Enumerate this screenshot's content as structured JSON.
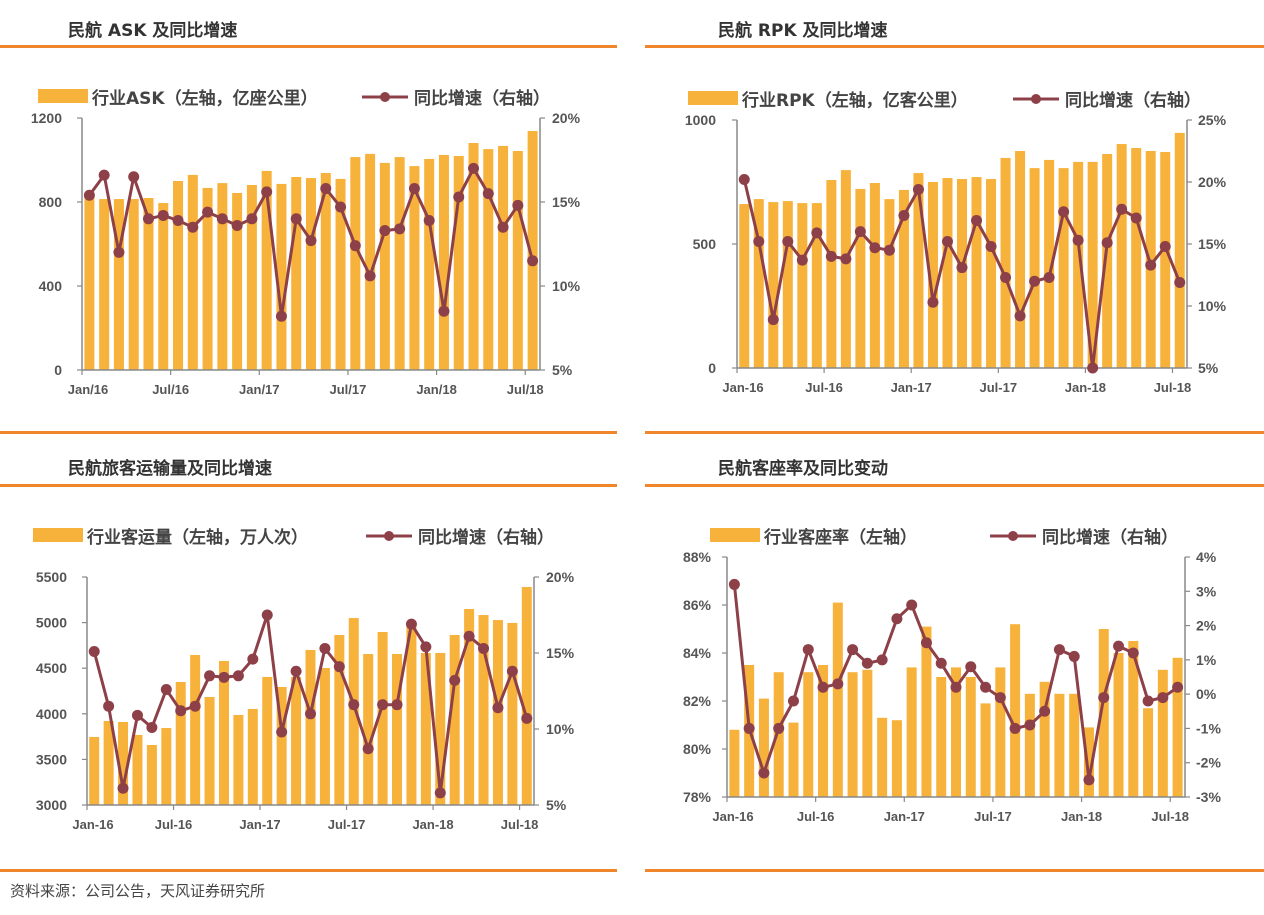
{
  "source": "资料来源：公司公告，天风证券研究所",
  "colors": {
    "bar": "#f7b23b",
    "line": "#8e4048",
    "rule": "#f0862c",
    "axis": "#888888"
  },
  "chart_data": [
    {
      "type": "bar+line",
      "title": "民航 ASK 及同比增速",
      "legend": {
        "bar": "行业ASK（左轴，亿座公里）",
        "line": "同比增速（右轴）",
        "position": "top"
      },
      "left_ticks": [
        "0",
        "400",
        "800",
        "1200"
      ],
      "right_ticks": [
        "5%",
        "10%",
        "15%",
        "20%"
      ],
      "ylim_left": [
        0,
        1200
      ],
      "ylim_right": [
        5,
        20
      ],
      "x_tick_labels": [
        "Jan/16",
        "Jul/16",
        "Jan/17",
        "Jul/17",
        "Jan/18",
        "Jul/18"
      ],
      "x": [
        "2016-01",
        "2016-02",
        "2016-03",
        "2016-04",
        "2016-05",
        "2016-06",
        "2016-07",
        "2016-08",
        "2016-09",
        "2016-10",
        "2016-11",
        "2016-12",
        "2017-01",
        "2017-02",
        "2017-03",
        "2017-04",
        "2017-05",
        "2017-06",
        "2017-07",
        "2017-08",
        "2017-09",
        "2017-10",
        "2017-11",
        "2017-12",
        "2018-01",
        "2018-02",
        "2018-03",
        "2018-04",
        "2018-05",
        "2018-06",
        "2018-07"
      ],
      "series": [
        {
          "name": "行业ASK",
          "axis": "left",
          "values": [
            824,
            814,
            814,
            814,
            819,
            795,
            900,
            929,
            867,
            890,
            843,
            881,
            948,
            886,
            919,
            914,
            938,
            910,
            1014,
            1029,
            986,
            1014,
            971,
            1005,
            1024,
            1019,
            1081,
            1052,
            1067,
            1043,
            1138
          ]
        },
        {
          "name": "同比增速",
          "axis": "right",
          "values": [
            15.4,
            16.6,
            12.0,
            16.5,
            14.0,
            14.2,
            13.9,
            13.5,
            14.4,
            14.0,
            13.6,
            14.0,
            15.6,
            8.2,
            14.0,
            12.7,
            15.8,
            14.7,
            12.4,
            10.6,
            13.3,
            13.4,
            15.8,
            13.9,
            8.5,
            15.3,
            17.0,
            15.5,
            13.5,
            14.8,
            11.5
          ]
        }
      ]
    },
    {
      "type": "bar+line",
      "title": "民航 RPK 及同比增速",
      "legend": {
        "bar": "行业RPK（左轴，亿客公里）",
        "line": "同比增速（右轴）",
        "position": "top"
      },
      "left_ticks": [
        "0",
        "500",
        "1000"
      ],
      "right_ticks": [
        "5%",
        "10%",
        "15%",
        "20%",
        "25%"
      ],
      "ylim_left": [
        0,
        1000
      ],
      "ylim_right": [
        5,
        25
      ],
      "x_tick_labels": [
        "Jan-16",
        "Jul-16",
        "Jan-17",
        "Jul-17",
        "Jan-18",
        "Jul-18"
      ],
      "x": [
        "2016-01",
        "2016-02",
        "2016-03",
        "2016-04",
        "2016-05",
        "2016-06",
        "2016-07",
        "2016-08",
        "2016-09",
        "2016-10",
        "2016-11",
        "2016-12",
        "2017-01",
        "2017-02",
        "2017-03",
        "2017-04",
        "2017-05",
        "2017-06",
        "2017-07",
        "2017-08",
        "2017-09",
        "2017-10",
        "2017-11",
        "2017-12",
        "2018-01",
        "2018-02",
        "2018-03",
        "2018-04",
        "2018-05",
        "2018-06",
        "2018-07"
      ],
      "series": [
        {
          "name": "行业RPK",
          "axis": "left",
          "values": [
            661,
            681,
            669,
            673,
            665,
            665,
            758,
            798,
            722,
            746,
            681,
            718,
            786,
            750,
            766,
            762,
            770,
            762,
            847,
            875,
            806,
            839,
            806,
            831,
            831,
            863,
            903,
            887,
            875,
            871,
            948
          ]
        },
        {
          "name": "同比增速",
          "axis": "right",
          "values": [
            20.2,
            15.2,
            8.9,
            15.2,
            13.7,
            15.9,
            14.0,
            13.8,
            16.0,
            14.7,
            14.5,
            17.3,
            19.4,
            10.3,
            15.2,
            13.1,
            16.9,
            14.8,
            12.3,
            9.2,
            12.0,
            12.3,
            17.6,
            15.3,
            5.0,
            15.1,
            17.8,
            17.1,
            13.3,
            14.8,
            11.9
          ]
        }
      ]
    },
    {
      "type": "bar+line",
      "title": "民航旅客运输量及同比增速",
      "legend": {
        "bar": "行业客运量（左轴，万人次）",
        "line": "同比增速（右轴）",
        "position": "top"
      },
      "left_ticks": [
        "3000",
        "3500",
        "4000",
        "4500",
        "5000",
        "5500"
      ],
      "right_ticks": [
        "5%",
        "10%",
        "15%",
        "20%"
      ],
      "ylim_left": [
        3000,
        5500
      ],
      "ylim_right": [
        5,
        20
      ],
      "x_tick_labels": [
        "Jan-16",
        "Jul-16",
        "Jan-17",
        "Jul-17",
        "Jan-18",
        "Jul-18"
      ],
      "x": [
        "2016-01",
        "2016-02",
        "2016-03",
        "2016-04",
        "2016-05",
        "2016-06",
        "2016-07",
        "2016-08",
        "2016-09",
        "2016-10",
        "2016-11",
        "2016-12",
        "2017-01",
        "2017-02",
        "2017-03",
        "2017-04",
        "2017-05",
        "2017-06",
        "2017-07",
        "2017-08",
        "2017-09",
        "2017-10",
        "2017-11",
        "2017-12",
        "2018-01",
        "2018-02",
        "2018-03",
        "2018-04",
        "2018-05",
        "2018-06",
        "2018-07"
      ],
      "series": [
        {
          "name": "行业客运量",
          "axis": "left",
          "values": [
            3746,
            3921,
            3910,
            3768,
            3658,
            3844,
            4349,
            4645,
            4184,
            4579,
            3987,
            4053,
            4404,
            4294,
            4404,
            4700,
            4502,
            4864,
            5050,
            4656,
            4897,
            4656,
            4974,
            4667,
            4667,
            4864,
            5149,
            5083,
            5028,
            4996,
            5390
          ]
        },
        {
          "name": "同比增速",
          "axis": "right",
          "values": [
            15.1,
            11.5,
            6.1,
            10.9,
            10.1,
            12.6,
            11.2,
            11.5,
            13.5,
            13.4,
            13.5,
            14.6,
            17.5,
            9.8,
            13.8,
            11.0,
            15.3,
            14.1,
            11.6,
            8.7,
            11.6,
            11.6,
            16.9,
            15.4,
            5.8,
            13.2,
            16.1,
            15.3,
            11.4,
            13.8,
            10.7
          ]
        }
      ]
    },
    {
      "type": "bar+line",
      "title": "民航客座率及同比变动",
      "legend": {
        "bar": "行业客座率（左轴）",
        "line": "同比增速（右轴）",
        "position": "top"
      },
      "left_ticks": [
        "78%",
        "80%",
        "82%",
        "84%",
        "86%",
        "88%"
      ],
      "right_ticks": [
        "-3%",
        "-2%",
        "-1%",
        "0%",
        "1%",
        "2%",
        "3%",
        "4%"
      ],
      "ylim_left": [
        78,
        88
      ],
      "ylim_right": [
        -3,
        4
      ],
      "x_tick_labels": [
        "Jan-16",
        "Jul-16",
        "Jan-17",
        "Jul-17",
        "Jan-18",
        "Jul-18"
      ],
      "x": [
        "2016-01",
        "2016-02",
        "2016-03",
        "2016-04",
        "2016-05",
        "2016-06",
        "2016-07",
        "2016-08",
        "2016-09",
        "2016-10",
        "2016-11",
        "2016-12",
        "2017-01",
        "2017-02",
        "2017-03",
        "2017-04",
        "2017-05",
        "2017-06",
        "2017-07",
        "2017-08",
        "2017-09",
        "2017-10",
        "2017-11",
        "2017-12",
        "2018-01",
        "2018-02",
        "2018-03",
        "2018-04",
        "2018-05",
        "2018-06",
        "2018-07"
      ],
      "series": [
        {
          "name": "行业客座率",
          "axis": "left",
          "values": [
            80.8,
            83.5,
            82.1,
            83.2,
            81.1,
            83.2,
            83.5,
            86.1,
            83.2,
            83.3,
            81.3,
            81.2,
            83.4,
            85.1,
            83.0,
            83.4,
            83.0,
            81.9,
            83.4,
            85.2,
            82.3,
            82.8,
            82.3,
            82.3,
            80.9,
            85.0,
            84.0,
            84.5,
            81.7,
            83.3,
            83.8
          ]
        },
        {
          "name": "同比增速",
          "axis": "right",
          "values": [
            3.2,
            -1.0,
            -2.3,
            -1.0,
            -0.2,
            1.3,
            0.2,
            0.3,
            1.3,
            0.9,
            1.0,
            2.2,
            2.6,
            1.5,
            0.9,
            0.2,
            0.8,
            0.2,
            -0.1,
            -1.0,
            -0.9,
            -0.5,
            1.3,
            1.1,
            -2.5,
            -0.1,
            1.4,
            1.2,
            -0.2,
            -0.1,
            0.2
          ]
        }
      ]
    }
  ]
}
